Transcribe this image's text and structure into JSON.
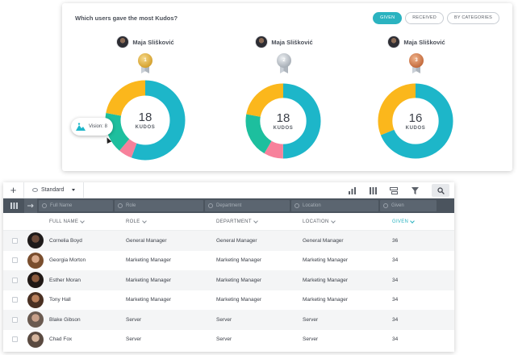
{
  "kudos": {
    "title": "Which users gave the most Kudos?",
    "filters": [
      {
        "label": "GIVEN",
        "active": true
      },
      {
        "label": "RECEIVED",
        "active": false
      },
      {
        "label": "BY CATEGORIES",
        "active": false
      }
    ],
    "winners": [
      {
        "name": "Maja Slišković",
        "medal": "gold",
        "rank": "1",
        "total": "18",
        "unit": "KUDOS"
      },
      {
        "name": "Maja Slišković",
        "medal": "silver",
        "rank": "2",
        "total": "18",
        "unit": "KUDOS"
      },
      {
        "name": "Maja Slišković",
        "medal": "bronze",
        "rank": "3",
        "total": "16",
        "unit": "KUDOS"
      }
    ],
    "tooltip": "Vision: 8"
  },
  "chart_data": [
    {
      "type": "pie",
      "slices": [
        {
          "value": 10,
          "color": "#1db6c9"
        },
        {
          "value": 1,
          "color": "#f7819b"
        },
        {
          "value": 3,
          "color": "#1dbf9e"
        },
        {
          "value": 4,
          "color": "#fbb71c"
        }
      ]
    },
    {
      "type": "pie",
      "slices": [
        {
          "value": 9,
          "color": "#1db6c9"
        },
        {
          "value": 1.5,
          "color": "#f7819b"
        },
        {
          "value": 3.5,
          "color": "#1dbf9e"
        },
        {
          "value": 4,
          "color": "#fbb71c"
        }
      ]
    },
    {
      "type": "pie",
      "slices": [
        {
          "value": 11,
          "color": "#1db6c9"
        },
        {
          "value": 5,
          "color": "#fbb71c"
        }
      ]
    }
  ],
  "table": {
    "view_label": "Standard",
    "filter_placeholders": [
      "Full Name",
      "Role",
      "Department",
      "Location",
      "Given"
    ],
    "columns": [
      "FULL NAME",
      "ROLE",
      "DEPARTMENT",
      "LOCATION",
      "GIVEN"
    ],
    "rows": [
      {
        "name": "Cornelia Boyd",
        "role": "General Manager",
        "department": "General Manager",
        "location": "General Manager",
        "given": "36"
      },
      {
        "name": "Georgia Morton",
        "role": "Marketing Manager",
        "department": "Marketing Manager",
        "location": "Marketing Manager",
        "given": "34"
      },
      {
        "name": "Esther Moran",
        "role": "Marketing Manager",
        "department": "Marketing Manager",
        "location": "Marketing Manager",
        "given": "34"
      },
      {
        "name": "Tony Hall",
        "role": "Marketing Manager",
        "department": "Marketing Manager",
        "location": "Marketing Manager",
        "given": "34"
      },
      {
        "name": "Blake Gibson",
        "role": "Server",
        "department": "Server",
        "location": "Server",
        "given": "34"
      },
      {
        "name": "Chad Fox",
        "role": "Server",
        "department": "Server",
        "location": "Server",
        "given": "34"
      }
    ]
  }
}
